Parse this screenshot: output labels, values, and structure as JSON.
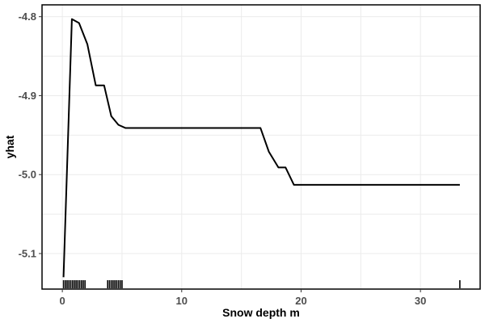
{
  "chart_data": {
    "type": "line",
    "title": "",
    "xlabel": "Snow depth m",
    "ylabel": "yhat",
    "xlim": [
      -1.7,
      35.0
    ],
    "ylim": [
      -5.145,
      -4.785
    ],
    "grid": true,
    "x_ticks": [
      0,
      10,
      20,
      30
    ],
    "x_tick_labels": [
      "0",
      "10",
      "20",
      "30"
    ],
    "y_ticks": [
      -4.8,
      -4.9,
      -5.0,
      -5.1
    ],
    "y_tick_labels": [
      "-4.8",
      "-4.9",
      "-5.0",
      "-5.1"
    ],
    "series": [
      {
        "x": [
          0.1,
          0.8,
          1.4,
          2.1,
          2.8,
          3.5,
          4.1,
          4.7,
          5.3,
          16.6,
          17.3,
          18.1,
          18.7,
          19.4,
          33.3
        ],
        "y": [
          -5.13,
          -4.803,
          -4.808,
          -4.835,
          -4.887,
          -4.887,
          -4.926,
          -4.937,
          -4.941,
          -4.941,
          -4.971,
          -4.991,
          -4.991,
          -5.013,
          -5.013
        ]
      }
    ],
    "rug_x": [
      0.1,
      0.25,
      0.4,
      0.55,
      0.7,
      0.85,
      1.0,
      1.15,
      1.3,
      1.45,
      1.6,
      1.75,
      1.9,
      3.8,
      3.95,
      4.1,
      4.25,
      4.4,
      4.55,
      4.7,
      4.85,
      5.0,
      33.3
    ]
  }
}
